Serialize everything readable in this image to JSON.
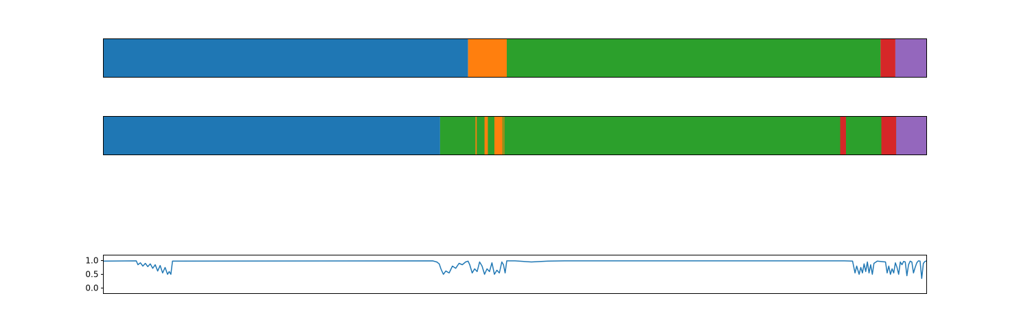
{
  "chart_data": [
    {
      "type": "bar",
      "orientation": "horizontal-stacked-segments",
      "title": "",
      "xlim": [
        0,
        1000
      ],
      "axes_visible": false,
      "grid": false,
      "segments": [
        {
          "start": 0,
          "end": 443,
          "color": "#1f77b4"
        },
        {
          "start": 443,
          "end": 490,
          "color": "#ff7f0e"
        },
        {
          "start": 490,
          "end": 944,
          "color": "#2ca02c"
        },
        {
          "start": 944,
          "end": 962,
          "color": "#d62728"
        },
        {
          "start": 962,
          "end": 1000,
          "color": "#9467bd"
        }
      ]
    },
    {
      "type": "bar",
      "orientation": "horizontal-stacked-segments",
      "title": "",
      "xlim": [
        0,
        1000
      ],
      "axes_visible": false,
      "grid": false,
      "segments": [
        {
          "start": 0,
          "end": 409,
          "color": "#1f77b4"
        },
        {
          "start": 409,
          "end": 1000,
          "color": "#2ca02c"
        },
        {
          "start": 452,
          "end": 453.5,
          "color": "#ff7f0e"
        },
        {
          "start": 463,
          "end": 467,
          "color": "#ff7f0e"
        },
        {
          "start": 475,
          "end": 485,
          "color": "#ff7f0e"
        },
        {
          "start": 486,
          "end": 487,
          "color": "#ff7f0e"
        },
        {
          "start": 895,
          "end": 902,
          "color": "#d62728"
        },
        {
          "start": 945,
          "end": 963,
          "color": "#d62728"
        },
        {
          "start": 963,
          "end": 1000,
          "color": "#9467bd"
        }
      ]
    },
    {
      "type": "line",
      "title": "",
      "xlim": [
        0,
        1000
      ],
      "ylim": [
        -0.2,
        1.2
      ],
      "yticks": [
        {
          "value": 1.0,
          "label": "1.0"
        },
        {
          "value": 0.5,
          "label": "0.5"
        },
        {
          "value": 0.0,
          "label": "0.0"
        }
      ],
      "xticks_visible": false,
      "grid": false,
      "series": [
        {
          "color": "#1f77b4",
          "x": [
            0,
            40,
            42,
            45,
            48,
            51,
            54,
            57,
            60,
            63,
            66,
            69,
            72,
            75,
            78,
            80,
            82,
            84,
            400,
            405,
            408,
            410,
            413,
            416,
            420,
            424,
            428,
            432,
            436,
            440,
            443,
            445,
            448,
            451,
            454,
            457,
            460,
            463,
            466,
            469,
            472,
            475,
            478,
            481,
            484,
            486,
            488,
            490,
            500,
            520,
            540,
            560,
            900,
            910,
            913,
            915,
            918,
            920,
            922,
            924,
            926,
            928,
            930,
            932,
            934,
            936,
            940,
            950,
            952,
            954,
            956,
            958,
            960,
            962,
            964,
            966,
            968,
            970,
            972,
            974,
            976,
            978,
            980,
            982,
            984,
            986,
            988,
            990,
            992,
            994,
            996,
            998,
            1000
          ],
          "y": [
            0.98,
            0.99,
            0.85,
            0.92,
            0.8,
            0.9,
            0.78,
            0.88,
            0.72,
            0.85,
            0.62,
            0.82,
            0.55,
            0.75,
            0.5,
            0.6,
            0.5,
            0.98,
            0.99,
            0.95,
            0.88,
            0.7,
            0.5,
            0.62,
            0.55,
            0.8,
            0.72,
            0.9,
            0.85,
            0.95,
            0.98,
            0.85,
            0.55,
            0.7,
            0.6,
            0.95,
            0.8,
            0.5,
            0.7,
            0.6,
            0.92,
            0.5,
            0.65,
            0.55,
            0.95,
            0.85,
            0.55,
            0.99,
            0.99,
            0.95,
            0.98,
            0.99,
            0.99,
            0.98,
            0.55,
            0.8,
            0.5,
            0.75,
            0.55,
            0.88,
            0.6,
            0.95,
            0.55,
            0.85,
            0.5,
            0.9,
            0.98,
            0.95,
            0.55,
            0.8,
            0.5,
            0.7,
            0.55,
            0.92,
            0.75,
            0.5,
            0.95,
            0.85,
            0.97,
            0.95,
            0.45,
            0.85,
            0.98,
            0.95,
            0.55,
            0.75,
            0.92,
            0.99,
            0.98,
            0.35,
            0.9,
            0.97,
            0.99
          ]
        }
      ]
    }
  ]
}
